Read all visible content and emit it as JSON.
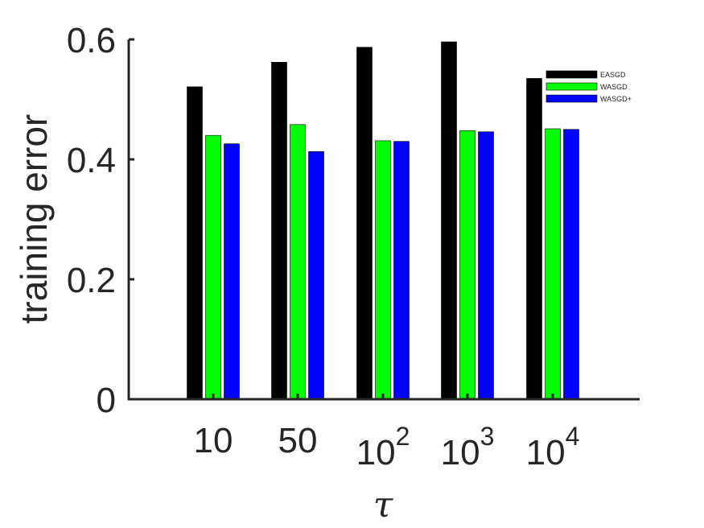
{
  "chart_data": {
    "type": "bar",
    "categories": [
      {
        "base": "10",
        "exp": ""
      },
      {
        "base": "50",
        "exp": ""
      },
      {
        "base": "10",
        "exp": "2"
      },
      {
        "base": "10",
        "exp": "3"
      },
      {
        "base": "10",
        "exp": "4"
      }
    ],
    "series": [
      {
        "name": "EASGD",
        "color": "#000000",
        "values": [
          0.521,
          0.562,
          0.587,
          0.596,
          0.535
        ]
      },
      {
        "name": "WASGD",
        "color": "#00ff00",
        "values": [
          0.44,
          0.458,
          0.431,
          0.448,
          0.451
        ]
      },
      {
        "name": "WASGD+",
        "color": "#0000ff",
        "values": [
          0.426,
          0.413,
          0.43,
          0.446,
          0.45
        ]
      }
    ],
    "ylim": [
      0,
      0.6
    ],
    "yticks": [
      "0",
      "0.2",
      "0.4",
      "0.6"
    ],
    "ytick_values": [
      0,
      0.2,
      0.4,
      0.6
    ],
    "xlabel": "τ",
    "ylabel": "training error",
    "legend_position": "top-right",
    "grid": false
  }
}
